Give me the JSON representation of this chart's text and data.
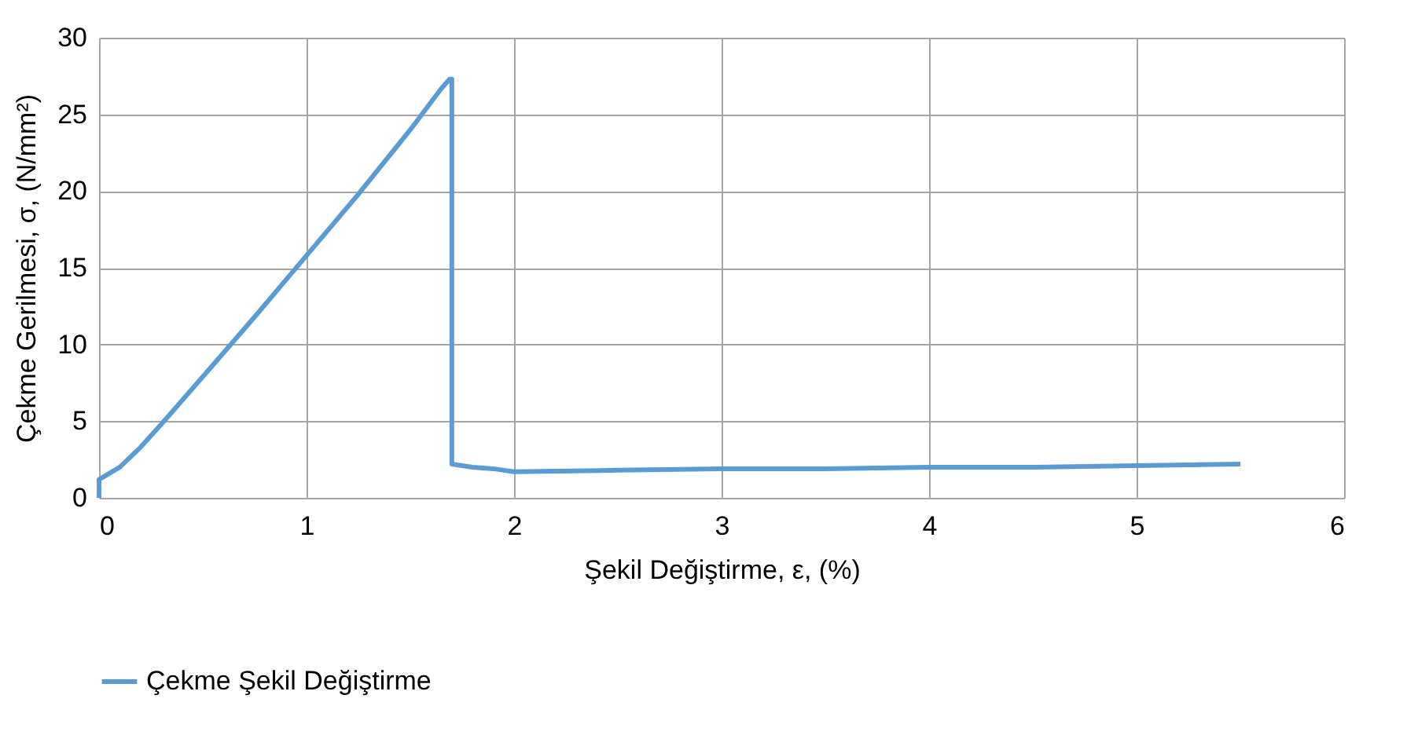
{
  "chart_data": {
    "type": "line",
    "xlabel": "Şekil Değiştirme, ε, (%)",
    "ylabel": "Çekme Gerilmesi, σ, (N/mm²)",
    "xlim": [
      0,
      6
    ],
    "xticks": [
      0,
      1,
      2,
      3,
      4,
      5,
      6
    ],
    "ylim": [
      0,
      30
    ],
    "yticks": [
      0,
      5,
      10,
      15,
      20,
      25,
      30
    ],
    "grid": true,
    "legend": "bottom",
    "marker": "none",
    "line_style": "solid",
    "series": [
      {
        "name": "Çekme Şekil Değiştirme",
        "color": "#5b9bd5",
        "x": [
          0,
          0,
          0.1,
          0.2,
          0.3,
          0.5,
          0.75,
          1.0,
          1.25,
          1.5,
          1.65,
          1.69,
          1.7,
          1.7,
          1.8,
          1.9,
          2.0,
          2.5,
          3.0,
          3.5,
          4.0,
          4.5,
          5.0,
          5.5
        ],
        "values": [
          0,
          1.2,
          2.0,
          3.3,
          4.8,
          7.9,
          11.8,
          15.8,
          19.8,
          24.0,
          26.7,
          27.3,
          27.3,
          2.2,
          2.0,
          1.9,
          1.7,
          1.8,
          1.9,
          1.9,
          2.0,
          2.0,
          2.1,
          2.2
        ]
      }
    ]
  }
}
